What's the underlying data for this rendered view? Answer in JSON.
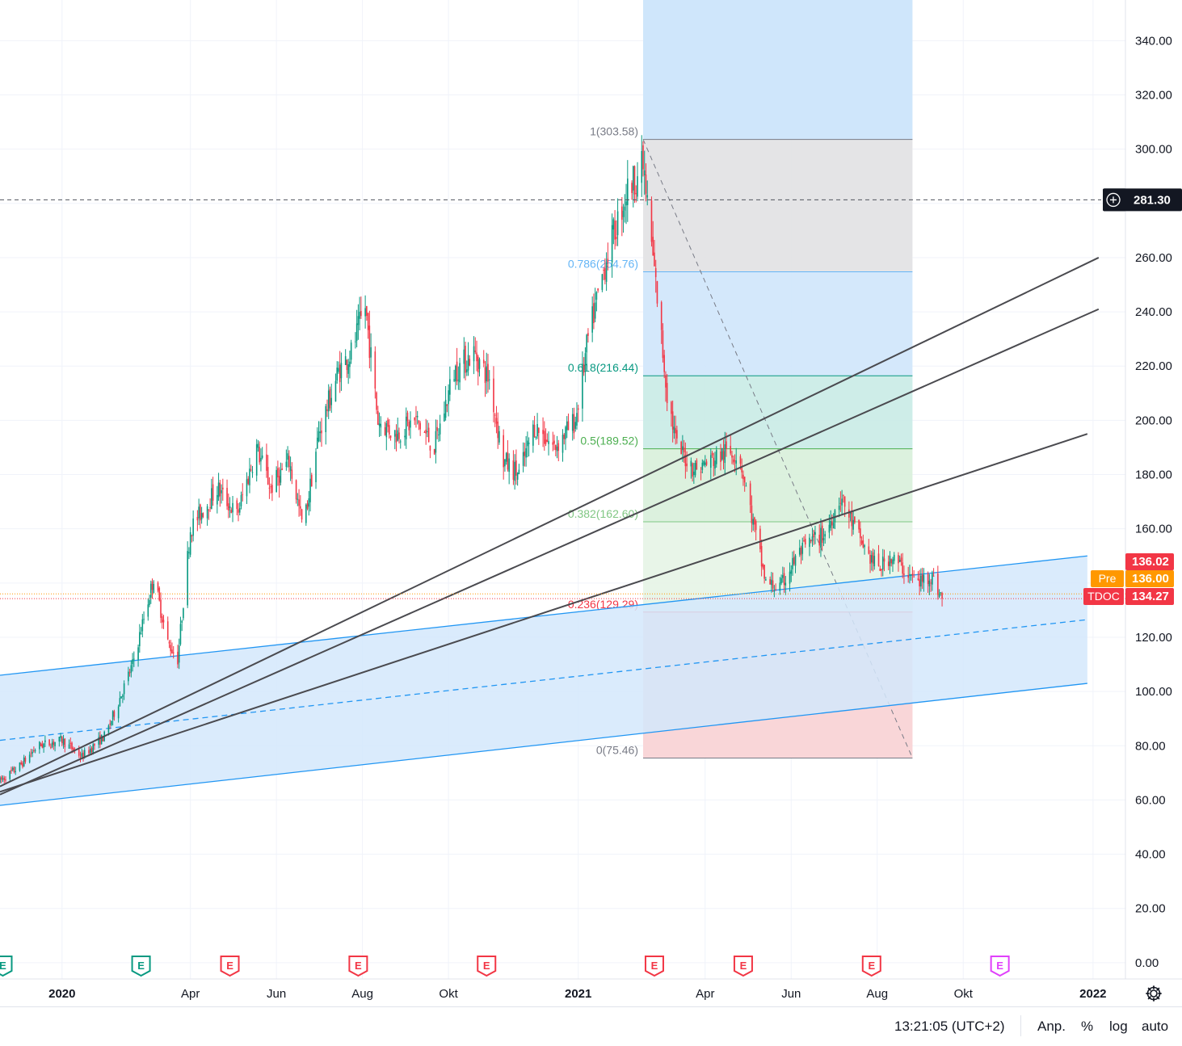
{
  "chart_data": {
    "type": "candlestick",
    "symbol": "TDOC",
    "y_ticks": [
      0,
      20,
      40,
      60,
      80,
      100,
      120,
      140,
      160,
      180,
      200,
      220,
      240,
      260,
      280,
      300,
      320,
      340
    ],
    "y_tick_labels": [
      "0.00",
      "20.00",
      "40.00",
      "60.00",
      "80.00",
      "100.00",
      "120.00",
      "140.00",
      "160.00",
      "180.00",
      "200.00",
      "220.00",
      "240.00",
      "260.00",
      "280.00",
      "300.00",
      "320.00",
      "340.00"
    ],
    "ylim": [
      -6,
      355
    ],
    "xlim": [
      "2019-11-18",
      "2022-01-24"
    ],
    "x_ticks": [
      {
        "date": "2020-01-01",
        "label": "2020",
        "bold": true
      },
      {
        "date": "2020-04-01",
        "label": "Apr",
        "bold": false
      },
      {
        "date": "2020-06-01",
        "label": "Jun",
        "bold": false
      },
      {
        "date": "2020-08-01",
        "label": "Aug",
        "bold": false
      },
      {
        "date": "2020-10-01",
        "label": "Okt",
        "bold": false
      },
      {
        "date": "2021-01-01",
        "label": "2021",
        "bold": true
      },
      {
        "date": "2021-04-01",
        "label": "Apr",
        "bold": false
      },
      {
        "date": "2021-06-01",
        "label": "Jun",
        "bold": false
      },
      {
        "date": "2021-08-01",
        "label": "Aug",
        "bold": false
      },
      {
        "date": "2021-10-01",
        "label": "Okt",
        "bold": false
      },
      {
        "date": "2022-01-01",
        "label": "2022",
        "bold": true
      }
    ],
    "price_path": [
      [
        "2019-11-18",
        67
      ],
      [
        "2019-12-01",
        72
      ],
      [
        "2019-12-15",
        80
      ],
      [
        "2020-01-01",
        82
      ],
      [
        "2020-01-15",
        76
      ],
      [
        "2020-02-01",
        84
      ],
      [
        "2020-02-20",
        110
      ],
      [
        "2020-03-06",
        142
      ],
      [
        "2020-03-16",
        118
      ],
      [
        "2020-03-23",
        112
      ],
      [
        "2020-04-01",
        160
      ],
      [
        "2020-04-20",
        175
      ],
      [
        "2020-05-04",
        165
      ],
      [
        "2020-05-18",
        190
      ],
      [
        "2020-05-28",
        175
      ],
      [
        "2020-06-10",
        185
      ],
      [
        "2020-06-20",
        160
      ],
      [
        "2020-07-01",
        195
      ],
      [
        "2020-07-15",
        218
      ],
      [
        "2020-07-24",
        225
      ],
      [
        "2020-08-03",
        242
      ],
      [
        "2020-08-12",
        200
      ],
      [
        "2020-08-24",
        195
      ],
      [
        "2020-09-08",
        200
      ],
      [
        "2020-09-21",
        190
      ],
      [
        "2020-10-05",
        218
      ],
      [
        "2020-10-19",
        225
      ],
      [
        "2020-10-30",
        215
      ],
      [
        "2020-11-09",
        185
      ],
      [
        "2020-11-20",
        180
      ],
      [
        "2020-12-01",
        198
      ],
      [
        "2020-12-15",
        190
      ],
      [
        "2020-12-30",
        200
      ],
      [
        "2021-01-08",
        230
      ],
      [
        "2021-01-22",
        262
      ],
      [
        "2021-02-05",
        285
      ],
      [
        "2021-02-16",
        294
      ],
      [
        "2021-02-25",
        250
      ],
      [
        "2021-03-05",
        210
      ],
      [
        "2021-03-12",
        190
      ],
      [
        "2021-03-25",
        182
      ],
      [
        "2021-04-05",
        185
      ],
      [
        "2021-04-15",
        188
      ],
      [
        "2021-04-25",
        188
      ],
      [
        "2021-05-05",
        162
      ],
      [
        "2021-05-14",
        140
      ],
      [
        "2021-05-24",
        138
      ],
      [
        "2021-06-05",
        150
      ],
      [
        "2021-06-15",
        155
      ],
      [
        "2021-06-25",
        158
      ],
      [
        "2021-07-06",
        172
      ],
      [
        "2021-07-16",
        160
      ],
      [
        "2021-07-26",
        150
      ],
      [
        "2021-08-02",
        145
      ],
      [
        "2021-08-10",
        150
      ],
      [
        "2021-08-20",
        145
      ],
      [
        "2021-08-30",
        140
      ],
      [
        "2021-09-08",
        143
      ],
      [
        "2021-09-16",
        134.27
      ]
    ],
    "last_price": 134.27,
    "fib_retracement": {
      "start_date": "2021-02-16",
      "end_date": "2021-08-26",
      "levels": [
        {
          "ratio": "1",
          "price": 303.58,
          "label": "1(303.58)",
          "color": "#787b86",
          "fill": "#e1e1e3"
        },
        {
          "ratio": "0.786",
          "price": 254.76,
          "label": "0.786(254.76)",
          "color": "#64b5f6",
          "fill": "#cfe6fb"
        },
        {
          "ratio": "0.618",
          "price": 216.44,
          "label": "0.618(216.44)",
          "color": "#089981",
          "fill": "#c9ebe6"
        },
        {
          "ratio": "0.5",
          "price": 189.52,
          "label": "0.5(189.52)",
          "color": "#4caf50",
          "fill": "#d8f0da"
        },
        {
          "ratio": "0.382",
          "price": 162.6,
          "label": "0.382(162.60)",
          "color": "#81c784",
          "fill": "#e6f4e5"
        },
        {
          "ratio": "0.236",
          "price": 129.29,
          "label": "0.236(129.29)",
          "color": "#f23645",
          "fill": "#e1d3de"
        },
        {
          "ratio": "0",
          "price": 75.46,
          "label": "0(75.46)",
          "color": "#787b86",
          "fill": "#fdd6d6"
        }
      ]
    },
    "channel": {
      "start_date": "2019-11-18",
      "end_date": "2021-12-28",
      "upper": [
        106,
        150
      ],
      "mid": [
        82,
        126.5
      ],
      "lower": [
        58,
        103
      ]
    },
    "trend_lines": [
      {
        "from": [
          "2019-11-18",
          65
        ],
        "to": [
          "2022-01-05",
          260
        ]
      },
      {
        "from": [
          "2019-11-18",
          62
        ],
        "to": [
          "2022-01-05",
          241
        ]
      },
      {
        "from": [
          "2019-11-18",
          63
        ],
        "to": [
          "2021-12-28",
          195
        ]
      }
    ],
    "horizontal_line": {
      "price": 281.3,
      "label": "281.30"
    },
    "price_tags": [
      {
        "name": "",
        "value": "136.02",
        "price": 136.02,
        "color": "#f23645"
      },
      {
        "name": "Pre",
        "value": "136.00",
        "price": 136.0,
        "color": "#ff9800"
      },
      {
        "name": "TDOC",
        "value": "134.27",
        "price": 134.27,
        "color": "#f23645"
      }
    ],
    "earnings_markers": [
      {
        "date": "2019-11-20",
        "label": "E",
        "color": "#089981"
      },
      {
        "date": "2020-02-26",
        "label": "E",
        "color": "#089981"
      },
      {
        "date": "2020-04-29",
        "label": "E",
        "color": "#f23645"
      },
      {
        "date": "2020-07-29",
        "label": "E",
        "color": "#f23645"
      },
      {
        "date": "2020-10-28",
        "label": "E",
        "color": "#f23645"
      },
      {
        "date": "2021-02-24",
        "label": "E",
        "color": "#f23645"
      },
      {
        "date": "2021-04-28",
        "label": "E",
        "color": "#f23645"
      },
      {
        "date": "2021-07-28",
        "label": "E",
        "color": "#f23645"
      },
      {
        "date": "2021-10-27",
        "label": "E",
        "color": "#e040fb"
      }
    ],
    "colors": {
      "up": "#089981",
      "down": "#f23645",
      "grid": "#f0f3fa",
      "channel_line": "#2196f3",
      "channel_fill": "#d3e8fb",
      "trend": "#4a4a4f"
    }
  },
  "bottom_bar": {
    "time": "13:21:05 (UTC+2)",
    "adjust": "Anp.",
    "percent": "%",
    "log": "log",
    "auto": "auto"
  },
  "icons": {
    "settings": "gear-icon",
    "crosshair": "plus-circle-icon"
  }
}
